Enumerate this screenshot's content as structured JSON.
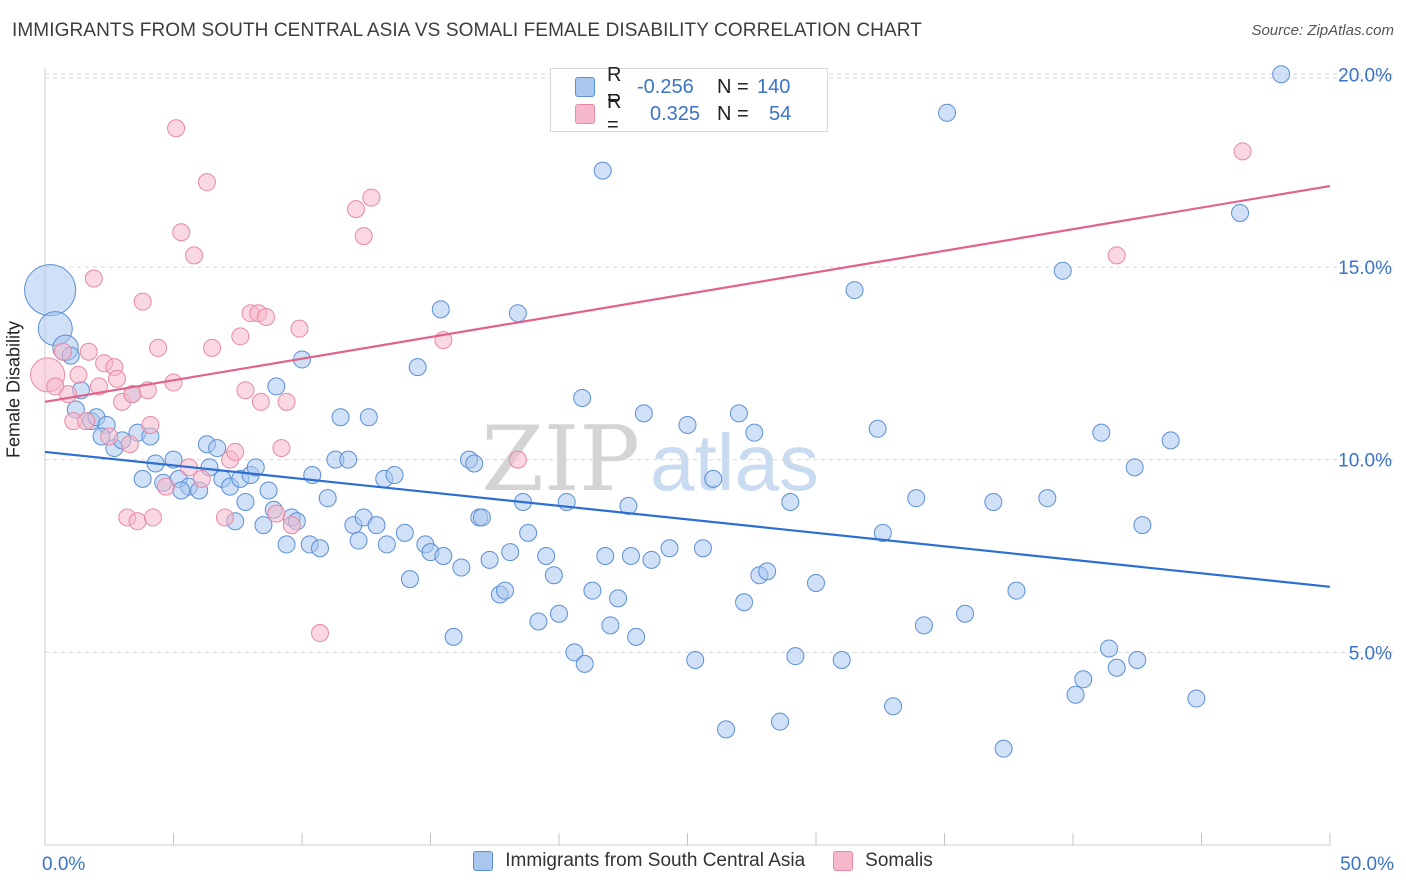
{
  "header": {
    "title": "IMMIGRANTS FROM SOUTH CENTRAL ASIA VS SOMALI FEMALE DISABILITY CORRELATION CHART",
    "source": "Source: ZipAtlas.com"
  },
  "watermark": {
    "zip": "ZIP",
    "atlas": "atlas"
  },
  "legend_top": {
    "rows": [
      {
        "r_label": "R =",
        "r_value": "-0.256",
        "n_label": "N =",
        "n_value": "140"
      },
      {
        "r_label": "R =",
        "r_value": "0.325",
        "n_label": "N =",
        "n_value": "54"
      }
    ]
  },
  "colors": {
    "blue_fill": "#a9c6ee",
    "blue_stroke": "#5b8fd6",
    "blue_line": "#2d6fd0",
    "pink_fill": "#f6b8cb",
    "pink_stroke": "#e889a6",
    "pink_line": "#e0628d",
    "tick_text": "#3b73c8",
    "grid": "#d9d9d9"
  },
  "chart_data": {
    "type": "scatter",
    "title": "IMMIGRANTS FROM SOUTH CENTRAL ASIA VS SOMALI FEMALE DISABILITY CORRELATION CHART",
    "xlabel": "",
    "ylabel": "Female Disability",
    "xlim": [
      0,
      50
    ],
    "ylim": [
      0,
      20.5
    ],
    "x_tick_labels": [
      "0.0%",
      "50.0%"
    ],
    "y_ticks": [
      5,
      10,
      15,
      20
    ],
    "y_tick_labels": [
      "5.0%",
      "10.0%",
      "15.0%",
      "20.0%"
    ],
    "grid": true,
    "legend_position": "top-center",
    "series": [
      {
        "name": "Immigrants from South Central Asia",
        "color": "#a9c6ee",
        "trend": {
          "x": [
            0,
            50
          ],
          "y": [
            10.2,
            6.7
          ]
        },
        "points": [
          [
            0.2,
            14.4,
            3
          ],
          [
            0.4,
            13.4,
            2
          ],
          [
            0.8,
            12.9,
            1.5
          ],
          [
            1.0,
            12.7,
            1
          ],
          [
            1.4,
            11.8,
            1
          ],
          [
            1.2,
            11.3,
            1
          ],
          [
            1.8,
            11.0,
            1
          ],
          [
            2.0,
            11.1,
            1
          ],
          [
            2.4,
            10.9,
            1
          ],
          [
            2.2,
            10.6,
            1
          ],
          [
            2.7,
            10.3,
            1
          ],
          [
            3.0,
            10.5,
            1
          ],
          [
            3.4,
            11.7,
            1
          ],
          [
            3.6,
            10.7,
            1
          ],
          [
            4.1,
            10.6,
            1
          ],
          [
            4.3,
            9.9,
            1
          ],
          [
            4.6,
            9.4,
            1
          ],
          [
            3.8,
            9.5,
            1
          ],
          [
            5.0,
            10.0,
            1
          ],
          [
            5.2,
            9.5,
            1
          ],
          [
            5.6,
            9.3,
            1
          ],
          [
            5.3,
            9.2,
            1
          ],
          [
            6.0,
            9.2,
            1
          ],
          [
            6.3,
            10.4,
            1
          ],
          [
            6.4,
            9.8,
            1
          ],
          [
            6.7,
            10.3,
            1
          ],
          [
            6.9,
            9.5,
            1
          ],
          [
            7.2,
            9.3,
            1
          ],
          [
            7.4,
            8.4,
            1
          ],
          [
            7.8,
            8.9,
            1
          ],
          [
            7.6,
            9.5,
            1
          ],
          [
            8.0,
            9.6,
            1
          ],
          [
            8.2,
            9.8,
            1
          ],
          [
            8.5,
            8.3,
            1
          ],
          [
            8.7,
            9.2,
            1
          ],
          [
            8.9,
            8.7,
            1
          ],
          [
            9.0,
            11.9,
            1
          ],
          [
            9.4,
            7.8,
            1
          ],
          [
            9.6,
            8.5,
            1
          ],
          [
            9.8,
            8.4,
            1
          ],
          [
            10.0,
            12.6,
            1
          ],
          [
            10.3,
            7.8,
            1
          ],
          [
            10.7,
            7.7,
            1
          ],
          [
            10.4,
            9.6,
            1
          ],
          [
            11.0,
            9.0,
            1
          ],
          [
            11.3,
            10.0,
            1
          ],
          [
            11.5,
            11.1,
            1
          ],
          [
            11.8,
            10.0,
            1
          ],
          [
            12.0,
            8.3,
            1
          ],
          [
            12.2,
            7.9,
            1
          ],
          [
            12.4,
            8.5,
            1
          ],
          [
            12.6,
            11.1,
            1
          ],
          [
            12.9,
            8.3,
            1
          ],
          [
            13.2,
            9.5,
            1
          ],
          [
            13.6,
            9.6,
            1
          ],
          [
            13.3,
            7.8,
            1
          ],
          [
            14.0,
            8.1,
            1
          ],
          [
            14.2,
            6.9,
            1
          ],
          [
            14.5,
            12.4,
            1
          ],
          [
            14.8,
            7.8,
            1
          ],
          [
            15.0,
            7.6,
            1
          ],
          [
            15.4,
            13.9,
            1
          ],
          [
            15.5,
            7.5,
            1
          ],
          [
            15.9,
            5.4,
            1
          ],
          [
            16.2,
            7.2,
            1
          ],
          [
            16.5,
            10.0,
            1
          ],
          [
            16.7,
            9.9,
            1
          ],
          [
            16.9,
            8.5,
            1
          ],
          [
            17.0,
            8.5,
            1
          ],
          [
            17.3,
            7.4,
            1
          ],
          [
            17.7,
            6.5,
            1
          ],
          [
            17.9,
            6.6,
            1
          ],
          [
            18.1,
            7.6,
            1
          ],
          [
            18.4,
            13.8,
            1
          ],
          [
            18.6,
            8.9,
            1
          ],
          [
            18.8,
            8.1,
            1
          ],
          [
            19.2,
            5.8,
            1
          ],
          [
            19.5,
            7.5,
            1
          ],
          [
            19.8,
            7.0,
            1
          ],
          [
            20.0,
            6.0,
            1
          ],
          [
            20.3,
            8.9,
            1
          ],
          [
            20.6,
            5.0,
            1
          ],
          [
            20.9,
            11.6,
            1
          ],
          [
            21.0,
            4.7,
            1
          ],
          [
            21.3,
            6.6,
            1
          ],
          [
            21.7,
            17.5,
            1
          ],
          [
            21.8,
            7.5,
            1
          ],
          [
            22.0,
            5.7,
            1
          ],
          [
            22.3,
            6.4,
            1
          ],
          [
            22.7,
            8.8,
            1
          ],
          [
            22.8,
            7.5,
            1
          ],
          [
            23.0,
            5.4,
            1
          ],
          [
            23.3,
            11.2,
            1
          ],
          [
            23.6,
            7.4,
            1
          ],
          [
            24.3,
            7.7,
            1
          ],
          [
            25.0,
            10.9,
            1
          ],
          [
            25.3,
            4.8,
            1
          ],
          [
            25.6,
            7.7,
            1
          ],
          [
            26.0,
            9.5,
            1
          ],
          [
            26.5,
            3.0,
            1
          ],
          [
            27.0,
            11.2,
            1
          ],
          [
            27.2,
            6.3,
            1
          ],
          [
            27.6,
            10.7,
            1
          ],
          [
            27.8,
            7.0,
            1
          ],
          [
            28.1,
            7.1,
            1
          ],
          [
            28.6,
            3.2,
            1
          ],
          [
            29.0,
            8.9,
            1
          ],
          [
            29.2,
            4.9,
            1
          ],
          [
            30.0,
            6.8,
            1
          ],
          [
            31.0,
            4.8,
            1
          ],
          [
            31.5,
            14.4,
            1
          ],
          [
            32.4,
            10.8,
            1
          ],
          [
            32.6,
            8.1,
            1
          ],
          [
            33.0,
            3.6,
            1
          ],
          [
            33.9,
            9.0,
            1
          ],
          [
            34.2,
            5.7,
            1
          ],
          [
            35.1,
            19.0,
            1
          ],
          [
            35.8,
            6.0,
            1
          ],
          [
            36.9,
            8.9,
            1
          ],
          [
            37.3,
            2.5,
            1
          ],
          [
            37.8,
            6.6,
            1
          ],
          [
            39.0,
            9.0,
            1
          ],
          [
            39.6,
            14.9,
            1
          ],
          [
            40.1,
            3.9,
            1
          ],
          [
            40.4,
            4.3,
            1
          ],
          [
            41.1,
            10.7,
            1
          ],
          [
            41.4,
            5.1,
            1
          ],
          [
            41.7,
            4.6,
            1
          ],
          [
            42.4,
            9.8,
            1
          ],
          [
            42.5,
            4.8,
            1
          ],
          [
            42.7,
            8.3,
            1
          ],
          [
            43.8,
            10.5,
            1
          ],
          [
            44.8,
            3.8,
            1
          ],
          [
            46.5,
            16.4,
            1
          ],
          [
            48.1,
            20.0,
            1
          ]
        ]
      },
      {
        "name": "Somalis",
        "color": "#f6b8cb",
        "trend": {
          "x": [
            0,
            50
          ],
          "y": [
            11.5,
            17.1
          ]
        },
        "points": [
          [
            0.1,
            12.2,
            2
          ],
          [
            0.4,
            11.9,
            1
          ],
          [
            0.7,
            12.8,
            1
          ],
          [
            0.9,
            11.7,
            1
          ],
          [
            1.1,
            11.0,
            1
          ],
          [
            1.3,
            12.2,
            1
          ],
          [
            1.6,
            11.0,
            1
          ],
          [
            1.7,
            12.8,
            1
          ],
          [
            1.9,
            14.7,
            1
          ],
          [
            2.1,
            11.9,
            1
          ],
          [
            2.3,
            12.5,
            1
          ],
          [
            2.5,
            10.6,
            1
          ],
          [
            2.7,
            12.4,
            1
          ],
          [
            2.8,
            12.1,
            1
          ],
          [
            3.0,
            11.5,
            1
          ],
          [
            3.3,
            10.4,
            1
          ],
          [
            3.4,
            11.7,
            1
          ],
          [
            3.2,
            8.5,
            1
          ],
          [
            3.6,
            8.4,
            1
          ],
          [
            3.8,
            14.1,
            1
          ],
          [
            4.0,
            11.8,
            1
          ],
          [
            4.1,
            10.9,
            1
          ],
          [
            4.2,
            8.5,
            1
          ],
          [
            4.4,
            12.9,
            1
          ],
          [
            4.7,
            9.3,
            1
          ],
          [
            5.0,
            12.0,
            1
          ],
          [
            5.1,
            18.6,
            1
          ],
          [
            5.3,
            15.9,
            1
          ],
          [
            5.6,
            9.8,
            1
          ],
          [
            5.8,
            15.3,
            1
          ],
          [
            6.1,
            9.5,
            1
          ],
          [
            6.3,
            17.2,
            1
          ],
          [
            6.5,
            12.9,
            1
          ],
          [
            7.0,
            8.5,
            1
          ],
          [
            7.2,
            10.0,
            1
          ],
          [
            7.4,
            10.2,
            1
          ],
          [
            7.6,
            13.2,
            1
          ],
          [
            7.8,
            11.8,
            1
          ],
          [
            8.0,
            13.8,
            1
          ],
          [
            8.3,
            13.8,
            1
          ],
          [
            8.4,
            11.5,
            1
          ],
          [
            8.6,
            13.7,
            1
          ],
          [
            9.0,
            8.6,
            1
          ],
          [
            9.2,
            10.3,
            1
          ],
          [
            9.4,
            11.5,
            1
          ],
          [
            9.6,
            8.3,
            1
          ],
          [
            9.9,
            13.4,
            1
          ],
          [
            10.7,
            5.5,
            1
          ],
          [
            12.1,
            16.5,
            1
          ],
          [
            12.4,
            15.8,
            1
          ],
          [
            12.7,
            16.8,
            1
          ],
          [
            15.5,
            13.1,
            1
          ],
          [
            18.4,
            10.0,
            1
          ],
          [
            41.7,
            15.3,
            1
          ],
          [
            46.6,
            18.0,
            1
          ]
        ]
      }
    ]
  },
  "legend_bottom": {
    "items": [
      {
        "label": "Immigrants from South Central Asia"
      },
      {
        "label": "Somalis"
      }
    ]
  }
}
